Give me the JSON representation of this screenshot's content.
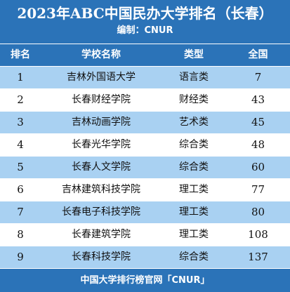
{
  "header": {
    "title": "2023年ABC中国民办大学排名（长春）",
    "subtitle": "编制：CNUR"
  },
  "columns": {
    "rank": "排名",
    "name": "学校名称",
    "type": "类型",
    "score": "全国"
  },
  "rows": [
    {
      "rank": "1",
      "name": "吉林外国语大学",
      "type": "语言类",
      "score": "7"
    },
    {
      "rank": "2",
      "name": "长春财经学院",
      "type": "财经类",
      "score": "43"
    },
    {
      "rank": "3",
      "name": "吉林动画学院",
      "type": "艺术类",
      "score": "45"
    },
    {
      "rank": "4",
      "name": "长春光华学院",
      "type": "综合类",
      "score": "48"
    },
    {
      "rank": "5",
      "name": "长春人文学院",
      "type": "综合类",
      "score": "60"
    },
    {
      "rank": "6",
      "name": "吉林建筑科技学院",
      "type": "理工类",
      "score": "77"
    },
    {
      "rank": "7",
      "name": "长春电子科技学院",
      "type": "理工类",
      "score": "80"
    },
    {
      "rank": "8",
      "name": "长春建筑学院",
      "type": "理工类",
      "score": "108"
    },
    {
      "rank": "9",
      "name": "长春科技学院",
      "type": "综合类",
      "score": "137"
    }
  ],
  "footer": {
    "text": "中国大学排行榜官网「CNUR」"
  }
}
